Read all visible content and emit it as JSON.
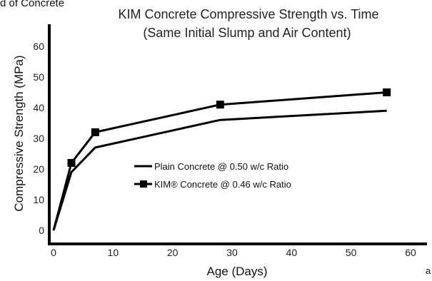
{
  "corner_text": "d of Concrete",
  "corner_mark": "a",
  "chart_data": {
    "type": "line",
    "title": "KIM Concrete Compressive Strength vs. Time",
    "subtitle": "(Same Initial Slump and Air Content)",
    "xlabel": "Age (Days)",
    "ylabel": "Compressive Strength (MPa)",
    "xlim": [
      0,
      60
    ],
    "ylim": [
      0,
      65
    ],
    "x_ticks": [
      0,
      10,
      20,
      30,
      40,
      50,
      60
    ],
    "y_ticks": [
      0,
      10,
      20,
      30,
      40,
      50,
      60
    ],
    "grid": false,
    "legend_position": "center",
    "series": [
      {
        "name": "Plain Concrete @ 0.50 w/c Ratio",
        "marker": "none",
        "color": "#000000",
        "x": [
          0,
          3,
          7,
          28,
          56
        ],
        "y": [
          0,
          19,
          27,
          36,
          39
        ]
      },
      {
        "name": "KIM® Concrete @ 0.46 w/c Ratio",
        "marker": "square",
        "color": "#000000",
        "x": [
          0,
          3,
          7,
          28,
          56
        ],
        "y": [
          0,
          22,
          32,
          41,
          45
        ]
      }
    ]
  }
}
